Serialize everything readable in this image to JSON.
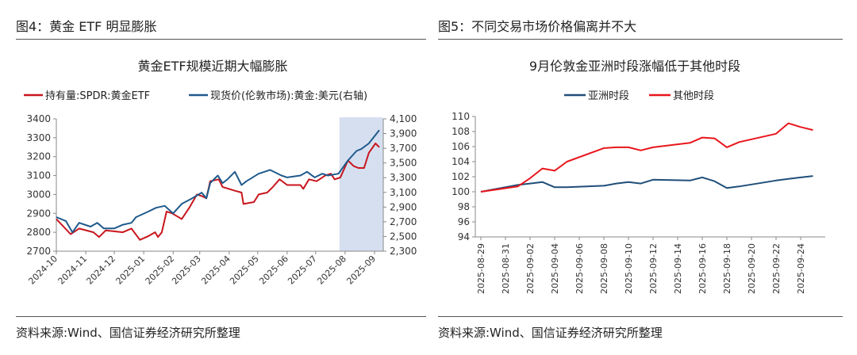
{
  "figures": [
    {
      "label": "图4：黄金 ETF 明显膨胀",
      "source": "资料来源:Wind、国信证券经济研究所整理"
    },
    {
      "label": "图5：不同交易市场价格偏离并不大",
      "source": "资料来源:Wind、国信证券经济研究所整理"
    }
  ],
  "chart_data": [
    {
      "type": "line",
      "title": "黄金ETF规模近期大幅膨胀",
      "legend_placement": "top",
      "grid": false,
      "x_ticks": [
        "2024-10",
        "2024-11",
        "2024-12",
        "2025-01",
        "2025-02",
        "2025-03",
        "2025-04",
        "2025-05",
        "2025-06",
        "2025-07",
        "2025-08",
        "2025-09"
      ],
      "y_left": {
        "range": [
          2700,
          3400
        ],
        "ticks": [
          "3400",
          "3300",
          "3200",
          "3100",
          "3000",
          "2900",
          "2800",
          "2700"
        ]
      },
      "y_right": {
        "range": [
          2300,
          4100
        ],
        "ticks": [
          "4,100",
          "3,900",
          "3,700",
          "3,500",
          "3,300",
          "3,100",
          "2,900",
          "2,700",
          "2,500",
          "2,300"
        ]
      },
      "highlight_range": [
        "2025-07-26",
        "2025-09-10"
      ],
      "highlight_color": "#d6dff0",
      "series": [
        {
          "name": "持有量:SPDR:黄金ETF",
          "axis": "left",
          "color": "#c8161d",
          "x": [
            "2024-10-01",
            "2024-10-16",
            "2024-10-25",
            "2024-11-09",
            "2024-11-15",
            "2024-11-22",
            "2024-12-10",
            "2024-12-19",
            "2024-12-28",
            "2025-01-06",
            "2025-01-13",
            "2025-01-16",
            "2025-01-20",
            "2025-01-25",
            "2025-01-31",
            "2025-02-10",
            "2025-02-18",
            "2025-02-26",
            "2025-03-04",
            "2025-03-08",
            "2025-03-12",
            "2025-03-21",
            "2025-03-25",
            "2025-04-07",
            "2025-04-14",
            "2025-04-16",
            "2025-04-27",
            "2025-05-02",
            "2025-05-11",
            "2025-05-17",
            "2025-05-24",
            "2025-06-01",
            "2025-06-15",
            "2025-06-18",
            "2025-06-24",
            "2025-07-02",
            "2025-07-11",
            "2025-07-17",
            "2025-07-21",
            "2025-07-27",
            "2025-08-04",
            "2025-08-10",
            "2025-08-15",
            "2025-08-21",
            "2025-08-26",
            "2025-09-02",
            "2025-09-06"
          ],
          "y": [
            2870,
            2790,
            2820,
            2800,
            2775,
            2810,
            2800,
            2820,
            2760,
            2780,
            2800,
            2775,
            2800,
            2910,
            2900,
            2870,
            2930,
            3000,
            2990,
            2980,
            3070,
            3080,
            3040,
            3020,
            3010,
            2950,
            2960,
            3000,
            3010,
            3040,
            3080,
            3050,
            3050,
            3030,
            3080,
            3070,
            3100,
            3110,
            3080,
            3090,
            3180,
            3150,
            3140,
            3140,
            3220,
            3270,
            3250
          ]
        },
        {
          "name": "现货价(伦敦市场):黄金:美元(右轴)",
          "axis": "right",
          "color": "#1f5a8c",
          "x": [
            "2024-10-01",
            "2024-10-11",
            "2024-10-18",
            "2024-10-25",
            "2024-11-06",
            "2024-11-13",
            "2024-11-20",
            "2024-12-01",
            "2024-12-10",
            "2024-12-19",
            "2024-12-24",
            "2025-01-06",
            "2025-01-14",
            "2025-01-23",
            "2025-02-01",
            "2025-02-10",
            "2025-02-21",
            "2025-03-03",
            "2025-03-08",
            "2025-03-12",
            "2025-03-20",
            "2025-03-25",
            "2025-03-30",
            "2025-04-07",
            "2025-04-14",
            "2025-04-19",
            "2025-05-02",
            "2025-05-14",
            "2025-05-26",
            "2025-06-01",
            "2025-06-15",
            "2025-06-22",
            "2025-06-30",
            "2025-07-08",
            "2025-07-14",
            "2025-07-25",
            "2025-08-04",
            "2025-08-13",
            "2025-08-18",
            "2025-08-26",
            "2025-09-06"
          ],
          "y": [
            2763,
            2711,
            2557,
            2686,
            2634,
            2686,
            2609,
            2609,
            2660,
            2686,
            2763,
            2840,
            2891,
            2917,
            2814,
            2943,
            3020,
            3097,
            3020,
            3226,
            3329,
            3226,
            3277,
            3380,
            3200,
            3251,
            3354,
            3406,
            3329,
            3303,
            3329,
            3380,
            3303,
            3354,
            3329,
            3354,
            3534,
            3663,
            3689,
            3766,
            3946
          ]
        }
      ]
    },
    {
      "type": "line",
      "title": "9月伦敦金亚洲时段涨幅低于其他时段",
      "legend_placement": "top",
      "grid": false,
      "x_ticks": [
        "2025-08-29",
        "2025-08-31",
        "2025-09-02",
        "2025-09-04",
        "2025-09-06",
        "2025-09-08",
        "2025-09-10",
        "2025-09-12",
        "2025-09-14",
        "2025-09-16",
        "2025-09-18",
        "2025-09-20",
        "2025-09-22",
        "2025-09-24"
      ],
      "y_range": [
        94,
        110
      ],
      "y_ticks": [
        "110",
        "108",
        "106",
        "104",
        "102",
        "100",
        "98",
        "96",
        "94"
      ],
      "series": [
        {
          "name": "亚洲时段",
          "color": "#1f4e79",
          "x": [
            "2025-08-29",
            "2025-09-01",
            "2025-09-02",
            "2025-09-03",
            "2025-09-04",
            "2025-09-05",
            "2025-09-08",
            "2025-09-09",
            "2025-09-10",
            "2025-09-11",
            "2025-09-12",
            "2025-09-15",
            "2025-09-16",
            "2025-09-17",
            "2025-09-18",
            "2025-09-19",
            "2025-09-22",
            "2025-09-23",
            "2025-09-24",
            "2025-09-25"
          ],
          "y": [
            100,
            100.9,
            101.1,
            101.3,
            100.6,
            100.6,
            100.8,
            101.1,
            101.3,
            101.1,
            101.6,
            101.5,
            101.9,
            101.4,
            100.5,
            100.7,
            101.5,
            101.7,
            101.9,
            102.1
          ]
        },
        {
          "name": "其他时段",
          "color": "#e8161c",
          "x": [
            "2025-08-29",
            "2025-09-01",
            "2025-09-02",
            "2025-09-03",
            "2025-09-04",
            "2025-09-05",
            "2025-09-08",
            "2025-09-09",
            "2025-09-10",
            "2025-09-11",
            "2025-09-12",
            "2025-09-15",
            "2025-09-16",
            "2025-09-17",
            "2025-09-18",
            "2025-09-19",
            "2025-09-22",
            "2025-09-23",
            "2025-09-24",
            "2025-09-25"
          ],
          "y": [
            100,
            100.7,
            101.8,
            103.1,
            102.8,
            104.0,
            105.8,
            105.9,
            105.9,
            105.5,
            105.9,
            106.5,
            107.2,
            107.1,
            105.9,
            106.6,
            107.7,
            109.1,
            108.6,
            108.2
          ]
        }
      ]
    }
  ]
}
